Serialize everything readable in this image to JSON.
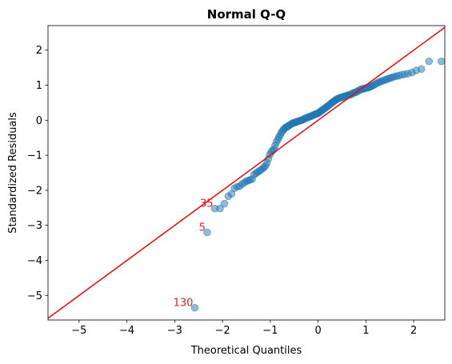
{
  "chart_data": {
    "type": "scatter",
    "title": "Normal Q-Q",
    "xlabel": "Theoretical Quantiles",
    "ylabel": "Standardized Residuals",
    "xlim": [
      -5.65,
      2.65
    ],
    "ylim": [
      -5.7,
      2.7
    ],
    "xticks": [
      -5,
      -4,
      -3,
      -2,
      -1,
      0,
      1,
      2
    ],
    "yticks": [
      -5,
      -4,
      -3,
      -2,
      -1,
      0,
      1,
      2
    ],
    "grid": false,
    "point_color": "#1f77b4",
    "line_color": "#ff0000",
    "annotation_color": "#d62728",
    "reference_line": {
      "intercept": 0,
      "slope": 1
    },
    "points": [
      [
        -2.58,
        -5.35
      ],
      [
        -2.32,
        -3.2
      ],
      [
        -2.16,
        -2.52
      ],
      [
        -2.05,
        -2.52
      ],
      [
        -1.96,
        -2.38
      ],
      [
        -1.88,
        -2.17
      ],
      [
        -1.81,
        -2.1
      ],
      [
        -1.75,
        -1.94
      ],
      [
        -1.69,
        -1.9
      ],
      [
        -1.64,
        -1.88
      ],
      [
        -1.59,
        -1.82
      ],
      [
        -1.54,
        -1.78
      ],
      [
        -1.5,
        -1.74
      ],
      [
        -1.46,
        -1.72
      ],
      [
        -1.42,
        -1.7
      ],
      [
        -1.38,
        -1.68
      ],
      [
        -1.34,
        -1.55
      ],
      [
        -1.3,
        -1.52
      ],
      [
        -1.27,
        -1.48
      ],
      [
        -1.23,
        -1.45
      ],
      [
        -1.2,
        -1.42
      ],
      [
        -1.16,
        -1.38
      ],
      [
        -1.13,
        -1.34
      ],
      [
        -1.1,
        -1.3
      ],
      [
        -1.07,
        -1.22
      ],
      [
        -1.04,
        -1.1
      ],
      [
        -1.01,
        -0.98
      ],
      [
        -0.98,
        -0.9
      ],
      [
        -0.95,
        -0.86
      ],
      [
        -0.92,
        -0.82
      ],
      [
        -0.9,
        -0.72
      ],
      [
        -0.87,
        -0.62
      ],
      [
        -0.84,
        -0.55
      ],
      [
        -0.82,
        -0.48
      ],
      [
        -0.79,
        -0.42
      ],
      [
        -0.77,
        -0.35
      ],
      [
        -0.74,
        -0.3
      ],
      [
        -0.72,
        -0.26
      ],
      [
        -0.69,
        -0.22
      ],
      [
        -0.67,
        -0.2
      ],
      [
        -0.64,
        -0.18
      ],
      [
        -0.62,
        -0.16
      ],
      [
        -0.6,
        -0.14
      ],
      [
        -0.57,
        -0.12
      ],
      [
        -0.55,
        -0.1
      ],
      [
        -0.53,
        -0.08
      ],
      [
        -0.5,
        -0.07
      ],
      [
        -0.48,
        -0.06
      ],
      [
        -0.46,
        -0.05
      ],
      [
        -0.44,
        -0.04
      ],
      [
        -0.42,
        -0.03
      ],
      [
        -0.39,
        -0.02
      ],
      [
        -0.37,
        -0.01
      ],
      [
        -0.35,
        0.0
      ],
      [
        -0.33,
        0.01
      ],
      [
        -0.31,
        0.02
      ],
      [
        -0.29,
        0.04
      ],
      [
        -0.27,
        0.05
      ],
      [
        -0.25,
        0.06
      ],
      [
        -0.22,
        0.08
      ],
      [
        -0.2,
        0.09
      ],
      [
        -0.18,
        0.1
      ],
      [
        -0.16,
        0.11
      ],
      [
        -0.14,
        0.12
      ],
      [
        -0.12,
        0.13
      ],
      [
        -0.1,
        0.15
      ],
      [
        -0.08,
        0.16
      ],
      [
        -0.06,
        0.17
      ],
      [
        -0.04,
        0.18
      ],
      [
        -0.02,
        0.19
      ],
      [
        0.0,
        0.2
      ],
      [
        0.02,
        0.22
      ],
      [
        0.04,
        0.24
      ],
      [
        0.06,
        0.26
      ],
      [
        0.08,
        0.28
      ],
      [
        0.1,
        0.3
      ],
      [
        0.12,
        0.32
      ],
      [
        0.14,
        0.34
      ],
      [
        0.16,
        0.36
      ],
      [
        0.18,
        0.38
      ],
      [
        0.2,
        0.4
      ],
      [
        0.22,
        0.42
      ],
      [
        0.25,
        0.45
      ],
      [
        0.27,
        0.48
      ],
      [
        0.29,
        0.5
      ],
      [
        0.31,
        0.52
      ],
      [
        0.33,
        0.54
      ],
      [
        0.35,
        0.56
      ],
      [
        0.37,
        0.58
      ],
      [
        0.39,
        0.6
      ],
      [
        0.42,
        0.62
      ],
      [
        0.44,
        0.63
      ],
      [
        0.46,
        0.64
      ],
      [
        0.48,
        0.65
      ],
      [
        0.5,
        0.66
      ],
      [
        0.53,
        0.67
      ],
      [
        0.55,
        0.68
      ],
      [
        0.57,
        0.69
      ],
      [
        0.6,
        0.7
      ],
      [
        0.62,
        0.71
      ],
      [
        0.64,
        0.72
      ],
      [
        0.67,
        0.73
      ],
      [
        0.69,
        0.74
      ],
      [
        0.72,
        0.76
      ],
      [
        0.74,
        0.78
      ],
      [
        0.77,
        0.79
      ],
      [
        0.79,
        0.8
      ],
      [
        0.82,
        0.82
      ],
      [
        0.84,
        0.84
      ],
      [
        0.87,
        0.86
      ],
      [
        0.9,
        0.88
      ],
      [
        0.92,
        0.89
      ],
      [
        0.95,
        0.9
      ],
      [
        0.98,
        0.91
      ],
      [
        1.01,
        0.92
      ],
      [
        1.04,
        0.93
      ],
      [
        1.07,
        0.94
      ],
      [
        1.1,
        0.96
      ],
      [
        1.13,
        0.98
      ],
      [
        1.16,
        1.0
      ],
      [
        1.2,
        1.03
      ],
      [
        1.23,
        1.06
      ],
      [
        1.27,
        1.08
      ],
      [
        1.3,
        1.1
      ],
      [
        1.34,
        1.12
      ],
      [
        1.38,
        1.14
      ],
      [
        1.42,
        1.16
      ],
      [
        1.46,
        1.18
      ],
      [
        1.5,
        1.2
      ],
      [
        1.54,
        1.22
      ],
      [
        1.59,
        1.24
      ],
      [
        1.64,
        1.26
      ],
      [
        1.69,
        1.27
      ],
      [
        1.75,
        1.3
      ],
      [
        1.81,
        1.31
      ],
      [
        1.88,
        1.33
      ],
      [
        1.96,
        1.36
      ],
      [
        2.05,
        1.42
      ],
      [
        2.16,
        1.46
      ],
      [
        2.32,
        1.68
      ],
      [
        2.58,
        1.68
      ]
    ],
    "annotations": [
      {
        "text": "130",
        "x": -2.58,
        "y": -5.35
      },
      {
        "text": "5",
        "x": -2.32,
        "y": -3.2
      },
      {
        "text": "35",
        "x": -2.16,
        "y": -2.52
      }
    ]
  }
}
